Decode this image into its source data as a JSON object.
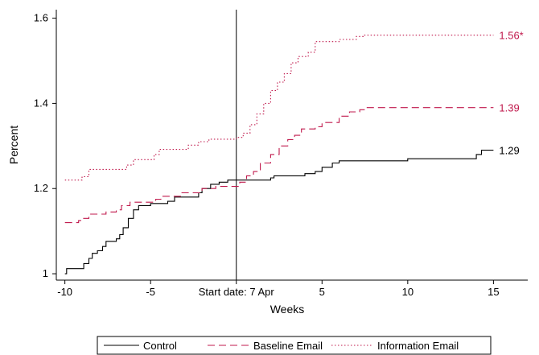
{
  "chart_data": {
    "type": "line",
    "xlabel": "Weeks",
    "ylabel": "Percent",
    "xlim": [
      -10.5,
      17
    ],
    "ylim": [
      0.985,
      1.62
    ],
    "x_ticks": [
      {
        "value": -10,
        "label": "-10"
      },
      {
        "value": -5,
        "label": "-5"
      },
      {
        "value": 0,
        "label": "Start date: 7 Apr"
      },
      {
        "value": 5,
        "label": "5"
      },
      {
        "value": 10,
        "label": "10"
      },
      {
        "value": 15,
        "label": "15"
      }
    ],
    "y_ticks": [
      {
        "value": 1.0,
        "label": "1"
      },
      {
        "value": 1.2,
        "label": "1.2"
      },
      {
        "value": 1.4,
        "label": "1.4"
      },
      {
        "value": 1.6,
        "label": "1.6"
      }
    ],
    "reference_line_x": 0,
    "grid": false,
    "legend_position": "bottom",
    "series": [
      {
        "name": "Control",
        "color": "#000000",
        "style": "solid",
        "end_label": "1.29",
        "points": [
          [
            -10,
            1.0
          ],
          [
            -9.9,
            1.012
          ],
          [
            -9,
            1.012
          ],
          [
            -8.9,
            1.024
          ],
          [
            -8.6,
            1.036
          ],
          [
            -8.4,
            1.048
          ],
          [
            -8.1,
            1.054
          ],
          [
            -7.8,
            1.064
          ],
          [
            -7.6,
            1.076
          ],
          [
            -7.0,
            1.082
          ],
          [
            -6.8,
            1.092
          ],
          [
            -6.6,
            1.108
          ],
          [
            -6.3,
            1.13
          ],
          [
            -6.0,
            1.15
          ],
          [
            -5.7,
            1.16
          ],
          [
            -5.0,
            1.165
          ],
          [
            -4.0,
            1.17
          ],
          [
            -3.6,
            1.18
          ],
          [
            -2.2,
            1.19
          ],
          [
            -2.0,
            1.2
          ],
          [
            -1.5,
            1.21
          ],
          [
            -1.0,
            1.215
          ],
          [
            -0.5,
            1.22
          ],
          [
            2.0,
            1.225
          ],
          [
            2.2,
            1.23
          ],
          [
            4.0,
            1.235
          ],
          [
            4.6,
            1.24
          ],
          [
            5.0,
            1.25
          ],
          [
            5.6,
            1.26
          ],
          [
            6.0,
            1.265
          ],
          [
            10.0,
            1.27
          ],
          [
            14.0,
            1.28
          ],
          [
            14.3,
            1.29
          ],
          [
            15.0,
            1.29
          ]
        ]
      },
      {
        "name": "Baseline Email",
        "color": "#c0194c",
        "style": "dashed",
        "end_label": "1.39",
        "points": [
          [
            -10,
            1.12
          ],
          [
            -9.2,
            1.125
          ],
          [
            -9.0,
            1.13
          ],
          [
            -8.6,
            1.14
          ],
          [
            -7.6,
            1.145
          ],
          [
            -7.0,
            1.15
          ],
          [
            -6.7,
            1.16
          ],
          [
            -6.2,
            1.168
          ],
          [
            -4.7,
            1.175
          ],
          [
            -4.4,
            1.182
          ],
          [
            -3.2,
            1.19
          ],
          [
            -2.0,
            1.2
          ],
          [
            -1.2,
            1.205
          ],
          [
            0.2,
            1.215
          ],
          [
            0.6,
            1.23
          ],
          [
            1.0,
            1.24
          ],
          [
            1.4,
            1.26
          ],
          [
            2.0,
            1.28
          ],
          [
            2.5,
            1.3
          ],
          [
            3.0,
            1.315
          ],
          [
            3.4,
            1.325
          ],
          [
            3.8,
            1.34
          ],
          [
            4.6,
            1.345
          ],
          [
            5.0,
            1.355
          ],
          [
            6.0,
            1.37
          ],
          [
            6.6,
            1.38
          ],
          [
            7.2,
            1.385
          ],
          [
            7.5,
            1.39
          ],
          [
            15.0,
            1.39
          ]
        ]
      },
      {
        "name": "Information Email",
        "color": "#c0194c",
        "style": "dotted",
        "end_label": "1.56*",
        "points": [
          [
            -10,
            1.22
          ],
          [
            -9.0,
            1.228
          ],
          [
            -8.6,
            1.245
          ],
          [
            -6.4,
            1.255
          ],
          [
            -6.0,
            1.268
          ],
          [
            -4.8,
            1.28
          ],
          [
            -4.5,
            1.292
          ],
          [
            -2.8,
            1.302
          ],
          [
            -2.2,
            1.31
          ],
          [
            -1.6,
            1.316
          ],
          [
            0.0,
            1.32
          ],
          [
            0.4,
            1.33
          ],
          [
            0.8,
            1.35
          ],
          [
            1.2,
            1.375
          ],
          [
            1.6,
            1.4
          ],
          [
            2.0,
            1.43
          ],
          [
            2.4,
            1.45
          ],
          [
            2.8,
            1.47
          ],
          [
            3.2,
            1.495
          ],
          [
            3.6,
            1.51
          ],
          [
            4.2,
            1.52
          ],
          [
            4.6,
            1.545
          ],
          [
            6.0,
            1.55
          ],
          [
            7.0,
            1.557
          ],
          [
            7.4,
            1.56
          ],
          [
            15.0,
            1.56
          ]
        ]
      }
    ]
  }
}
